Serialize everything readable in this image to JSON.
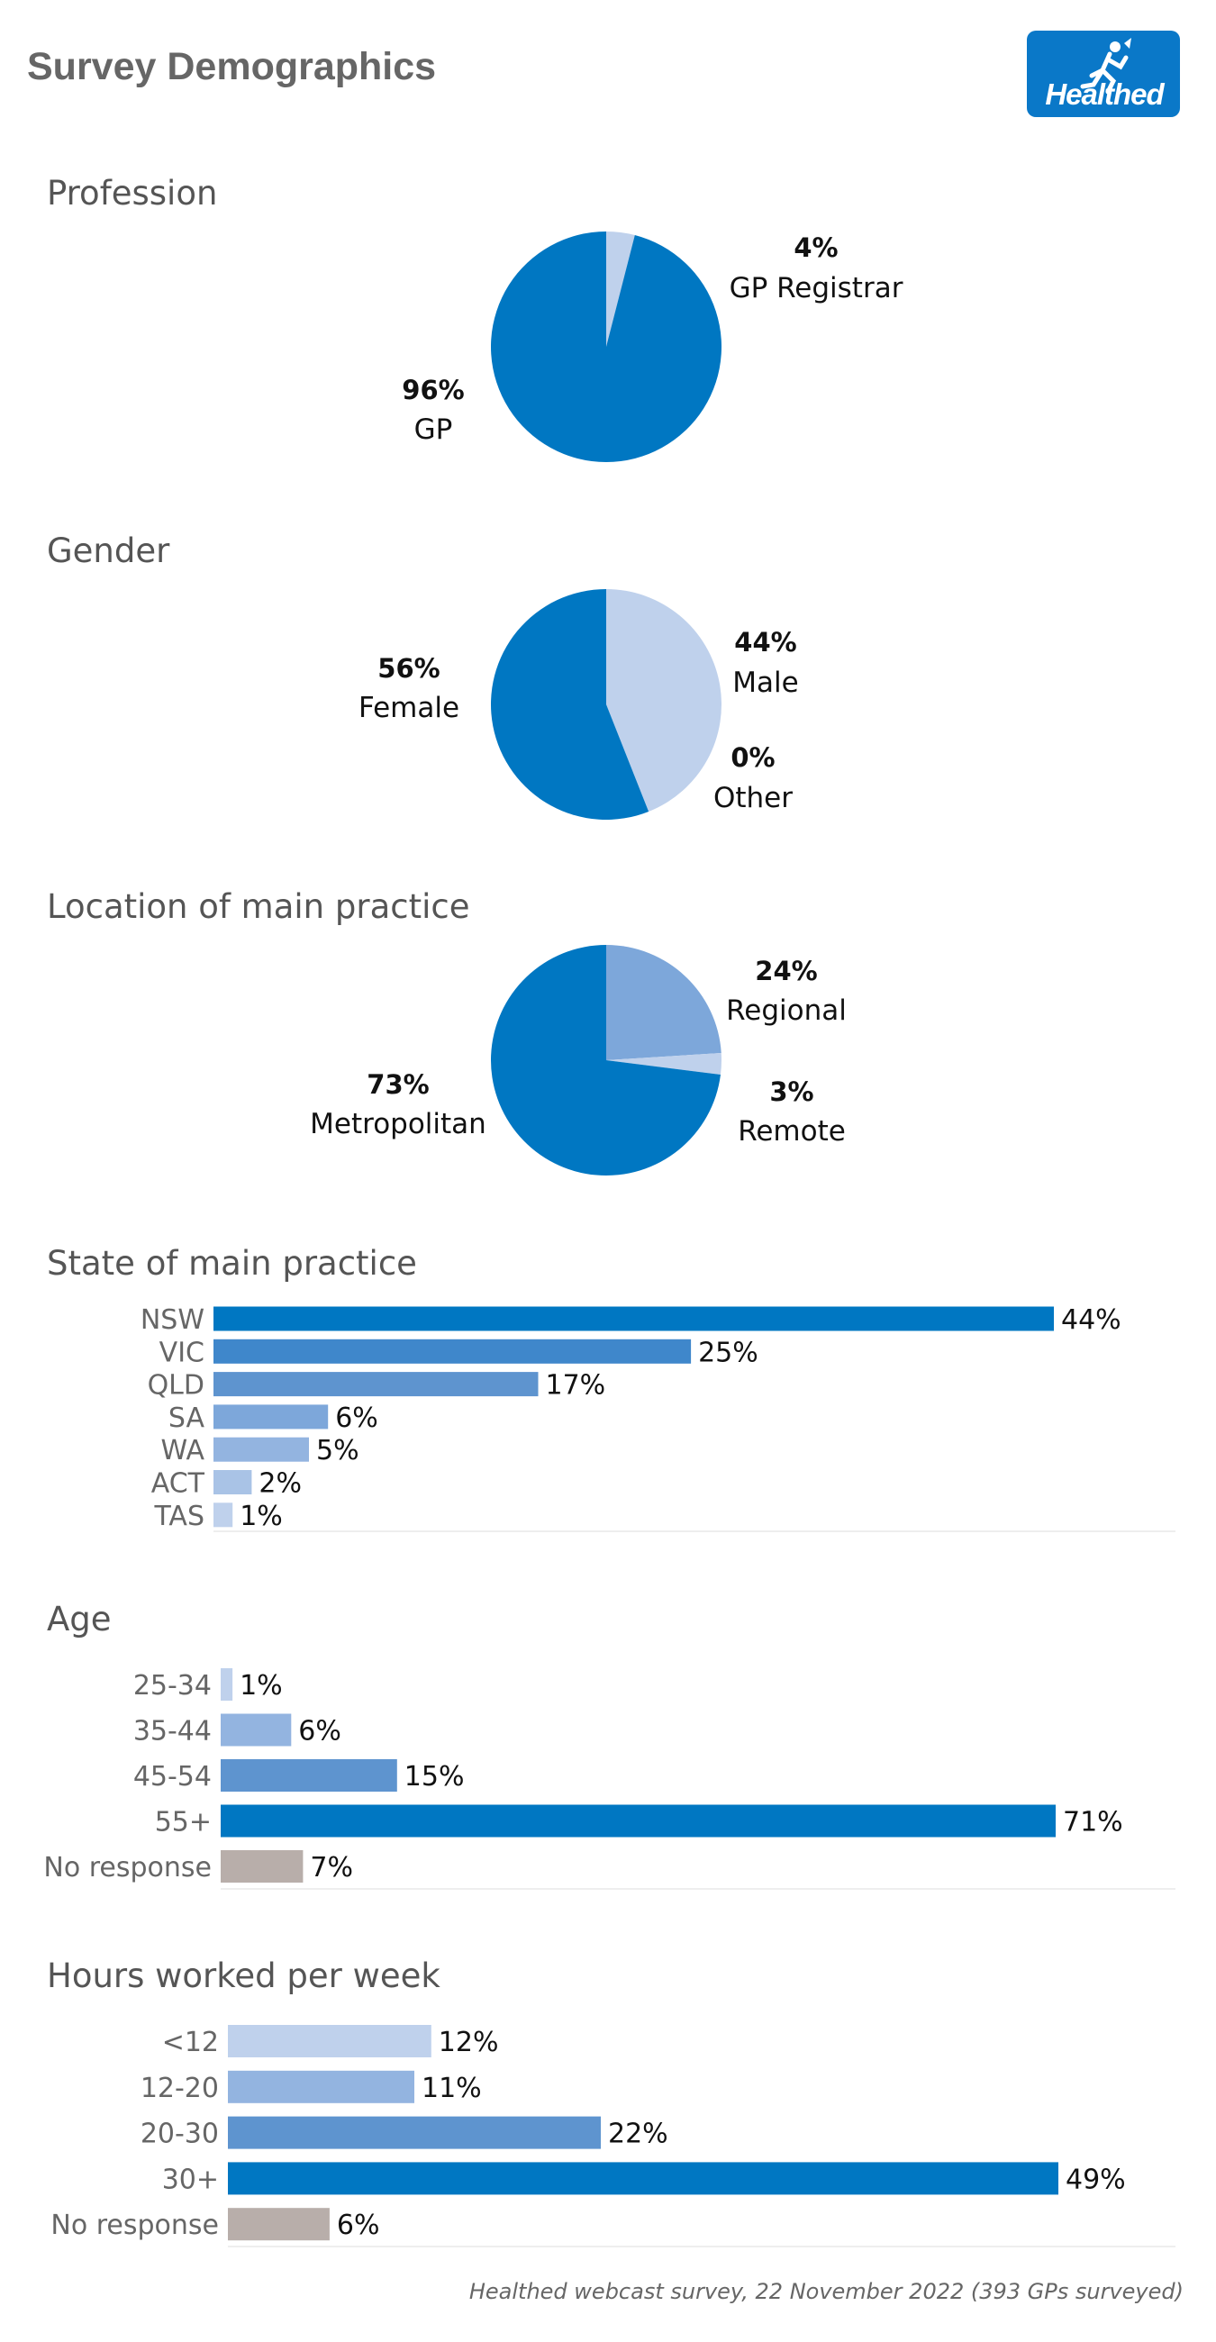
{
  "header": {
    "title": "Survey Demographics",
    "logo_text": "Healthed"
  },
  "colors": {
    "dark_blue": "#0077C2",
    "mid_blue": "#5E94CF",
    "light_mid_blue": "#7DA7DA",
    "soft_blue": "#93B4E0",
    "light_blue": "#BFD1EC",
    "grey": "#B8AEAA"
  },
  "chart_data": [
    {
      "type": "pie",
      "title": "Profession",
      "slices": [
        {
          "label": "GP Registrar",
          "pct": "4%",
          "value": 4,
          "color": "#BFD1EC"
        },
        {
          "label": "GP",
          "pct": "96%",
          "value": 96,
          "color": "#0077C2"
        }
      ]
    },
    {
      "type": "pie",
      "title": "Gender",
      "slices": [
        {
          "label": "Male",
          "pct": "44%",
          "value": 44,
          "color": "#BFD1EC"
        },
        {
          "label": "Other",
          "pct": "0%",
          "value": 0,
          "color": "#93B4E0"
        },
        {
          "label": "Female",
          "pct": "56%",
          "value": 56,
          "color": "#0077C2"
        }
      ]
    },
    {
      "type": "pie",
      "title": "Location of main practice",
      "slices": [
        {
          "label": "Regional",
          "pct": "24%",
          "value": 24,
          "color": "#7DA7DA"
        },
        {
          "label": "Remote",
          "pct": "3%",
          "value": 3,
          "color": "#BFD1EC"
        },
        {
          "label": "Metropolitan",
          "pct": "73%",
          "value": 73,
          "color": "#0077C2"
        }
      ]
    },
    {
      "type": "bar",
      "title": "State of main practice",
      "categories": [
        "NSW",
        "VIC",
        "QLD",
        "SA",
        "WA",
        "ACT",
        "TAS"
      ],
      "values": [
        44,
        25,
        17,
        6,
        5,
        2,
        1
      ],
      "labels": [
        "44%",
        "25%",
        "17%",
        "6%",
        "5%",
        "2%",
        "1%"
      ],
      "colors": [
        "#0077C2",
        "#3F87CB",
        "#5E94CF",
        "#7DA7DA",
        "#93B4E0",
        "#A9C3E6",
        "#BFD1EC"
      ]
    },
    {
      "type": "bar",
      "title": "Age",
      "categories": [
        "25-34",
        "35-44",
        "45-54",
        "55+",
        "No response"
      ],
      "values": [
        1,
        6,
        15,
        71,
        7
      ],
      "labels": [
        "1%",
        "6%",
        "15%",
        "71%",
        "7%"
      ],
      "colors": [
        "#BFD1EC",
        "#93B4E0",
        "#5E94CF",
        "#0077C2",
        "#B8AEAA"
      ]
    },
    {
      "type": "bar",
      "title": "Hours worked per week",
      "categories": [
        "<12",
        "12-20",
        "20-30",
        "30+",
        "No response"
      ],
      "values": [
        12,
        11,
        22,
        49,
        6
      ],
      "labels": [
        "12%",
        "11%",
        "22%",
        "49%",
        "6%"
      ],
      "colors": [
        "#BFD1EC",
        "#93B4E0",
        "#5E94CF",
        "#0077C2",
        "#B8AEAA"
      ]
    }
  ],
  "footer": {
    "source": "Healthed webcast survey, 22 November 2022 (393 GPs surveyed)"
  }
}
